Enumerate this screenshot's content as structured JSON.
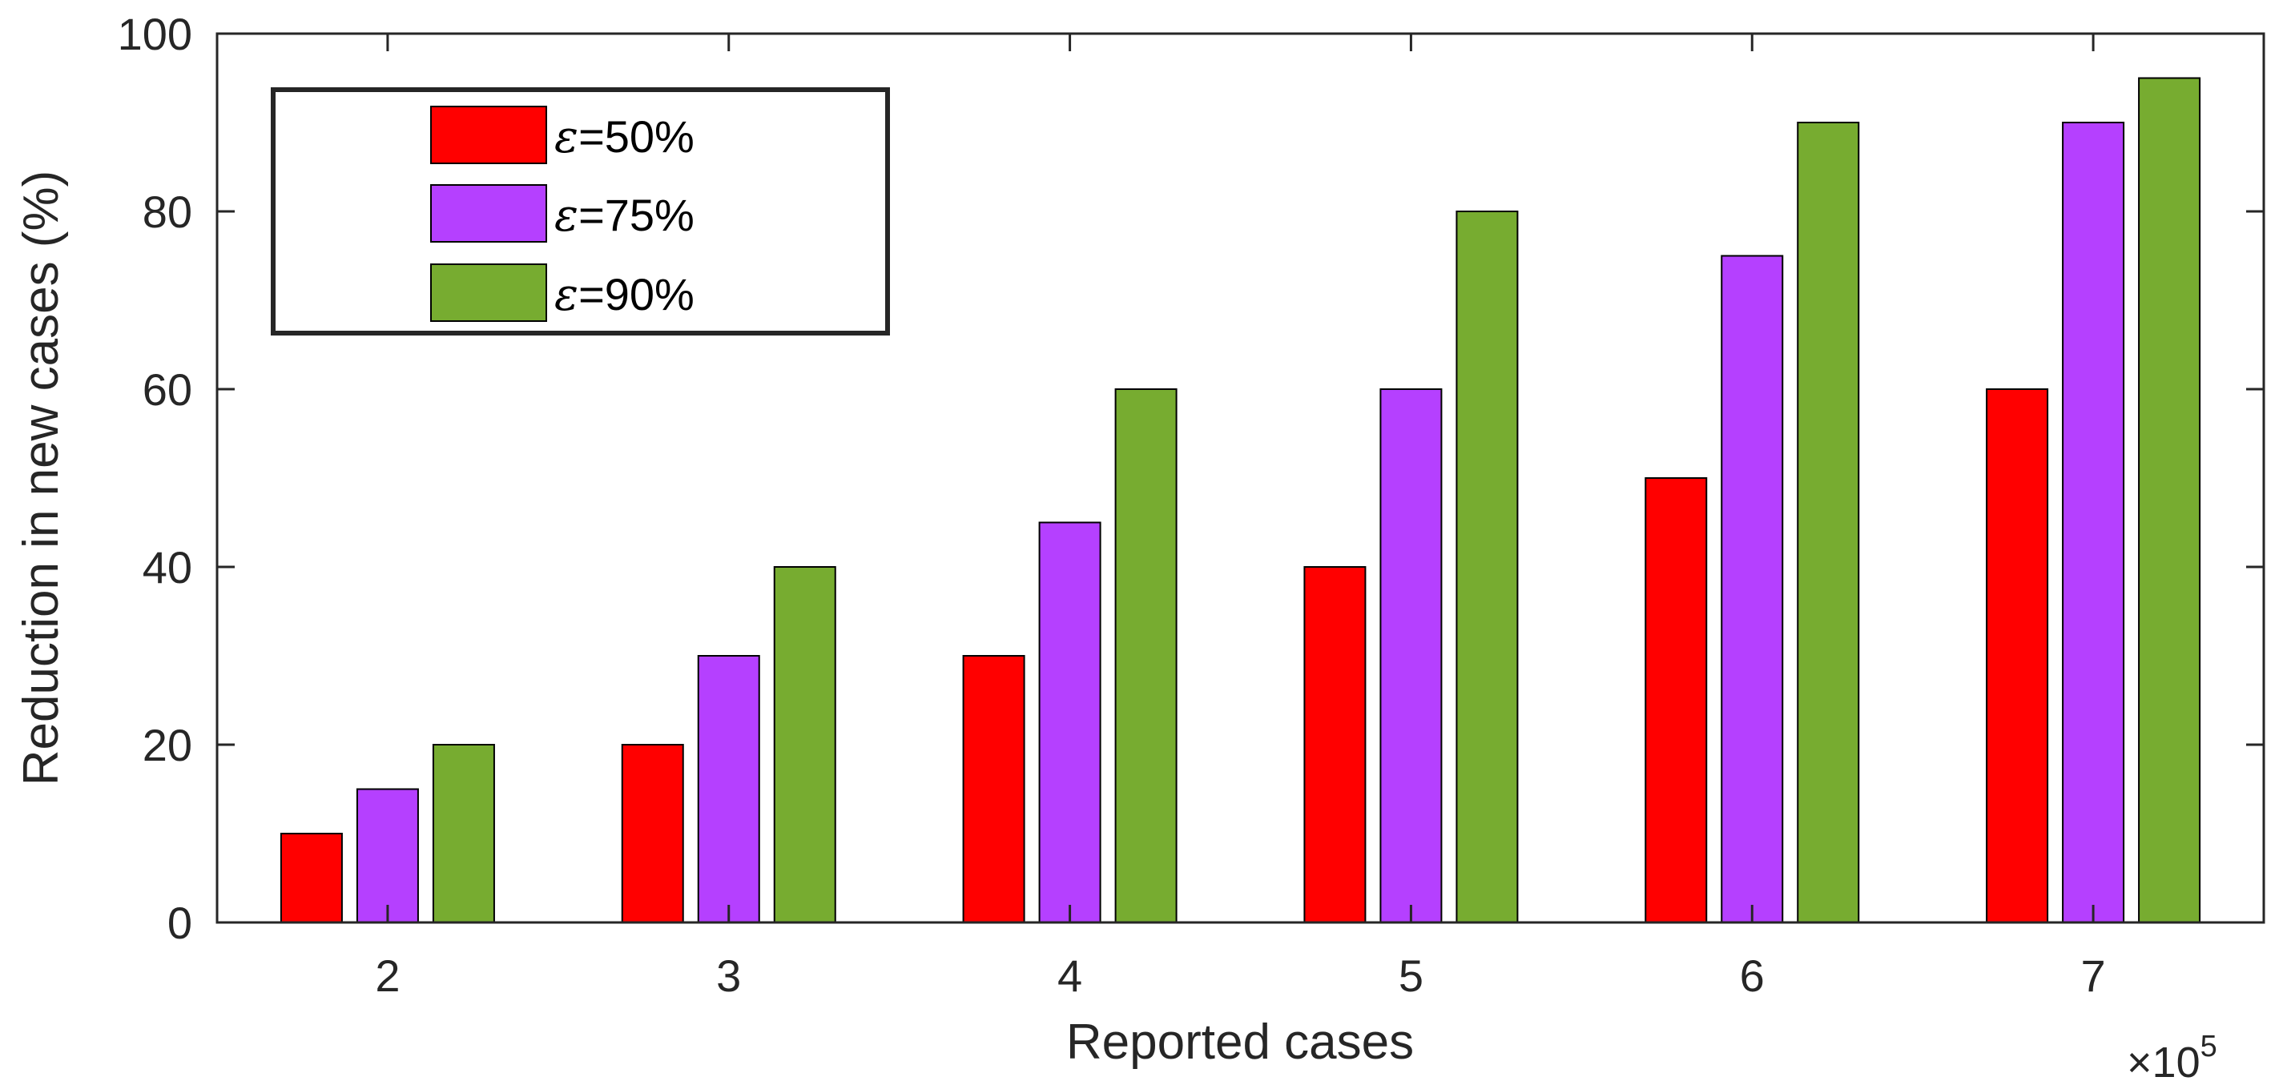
{
  "chart_data": {
    "type": "bar",
    "title": "",
    "xlabel": "Reported cases",
    "ylabel": "Reduction in new cases (%)",
    "x_multiplier": {
      "base": "×10",
      "exponent": "5"
    },
    "categories": [
      "2",
      "3",
      "4",
      "5",
      "6",
      "7"
    ],
    "series": [
      {
        "name": "ε=50%",
        "symbol": "ε",
        "label": "=50%",
        "color": "#ff0000",
        "values": [
          10,
          20,
          30,
          40,
          50,
          60
        ]
      },
      {
        "name": "ε=75%",
        "symbol": "ε",
        "label": "=75%",
        "color": "#b540ff",
        "values": [
          15,
          30,
          45,
          60,
          75,
          90
        ]
      },
      {
        "name": "ε=90%",
        "symbol": "ε",
        "label": "=90%",
        "color": "#77ac30",
        "values": [
          20,
          40,
          60,
          80,
          90,
          95
        ]
      }
    ],
    "ylim": [
      0,
      100
    ],
    "yticks": [
      0,
      20,
      40,
      60,
      80,
      100
    ],
    "grid": false,
    "legend_position": "top-left"
  }
}
